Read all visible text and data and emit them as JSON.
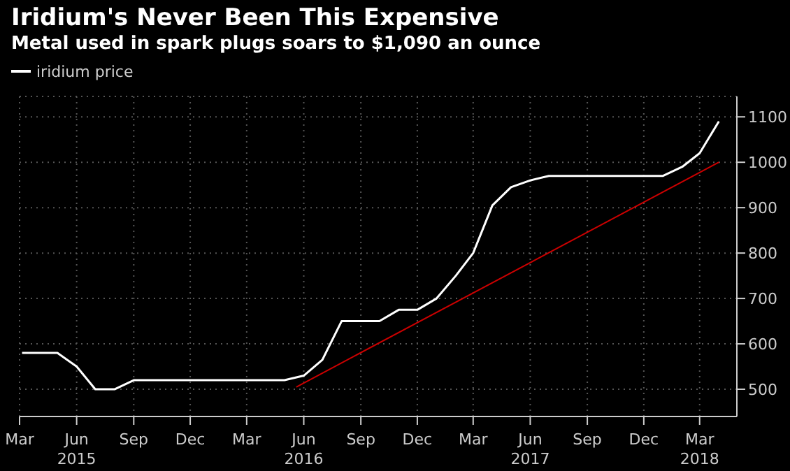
{
  "chart_data": {
    "type": "line",
    "title": "Iridium's Never Been This Expensive",
    "subtitle": "Metal used in spark plugs soars to $1,090 an ounce",
    "series": [
      {
        "name": "iridium price",
        "color": "#ffffff",
        "x": [
          "2015-03-05",
          "2015-05-01",
          "2015-06-01",
          "2015-07-01",
          "2015-08-01",
          "2015-09-01",
          "2016-05-01",
          "2016-06-01",
          "2016-07-01",
          "2016-08-01",
          "2016-10-01",
          "2016-11-01",
          "2016-12-01",
          "2017-01-01",
          "2017-02-01",
          "2017-03-01",
          "2017-04-01",
          "2017-05-01",
          "2017-06-01",
          "2017-07-01",
          "2018-01-01",
          "2018-02-01",
          "2018-03-01",
          "2018-04-01"
        ],
        "values": [
          580,
          580,
          550,
          500,
          500,
          520,
          520,
          530,
          565,
          650,
          650,
          675,
          675,
          700,
          750,
          800,
          905,
          945,
          960,
          970,
          970,
          990,
          1020,
          1090
        ]
      },
      {
        "type": "line",
        "color": "#cc0000",
        "x": [
          "2016-05-20",
          "2018-04-01"
        ],
        "values": [
          505,
          1000
        ]
      }
    ],
    "xlim": [
      "2015-03-01",
      "2018-04-30"
    ],
    "xticks": [
      {
        "value": "2015-03-01",
        "label": "Mar"
      },
      {
        "value": "2015-06-01",
        "label": "Jun\n2015"
      },
      {
        "value": "2015-09-01",
        "label": "Sep"
      },
      {
        "value": "2015-12-01",
        "label": "Dec"
      },
      {
        "value": "2016-03-01",
        "label": "Mar"
      },
      {
        "value": "2016-06-01",
        "label": "Jun\n2016"
      },
      {
        "value": "2016-09-01",
        "label": "Sep"
      },
      {
        "value": "2016-12-01",
        "label": "Dec"
      },
      {
        "value": "2017-03-01",
        "label": "Mar"
      },
      {
        "value": "2017-06-01",
        "label": "Jun\n2017"
      },
      {
        "value": "2017-09-01",
        "label": "Sep"
      },
      {
        "value": "2017-12-01",
        "label": "Dec"
      },
      {
        "value": "2018-03-01",
        "label": "Mar\n2018"
      }
    ],
    "ylim": [
      440,
      1145
    ],
    "yticks": [
      500,
      600,
      700,
      800,
      900,
      1000,
      1100
    ],
    "grid": true,
    "legend": "top left"
  }
}
